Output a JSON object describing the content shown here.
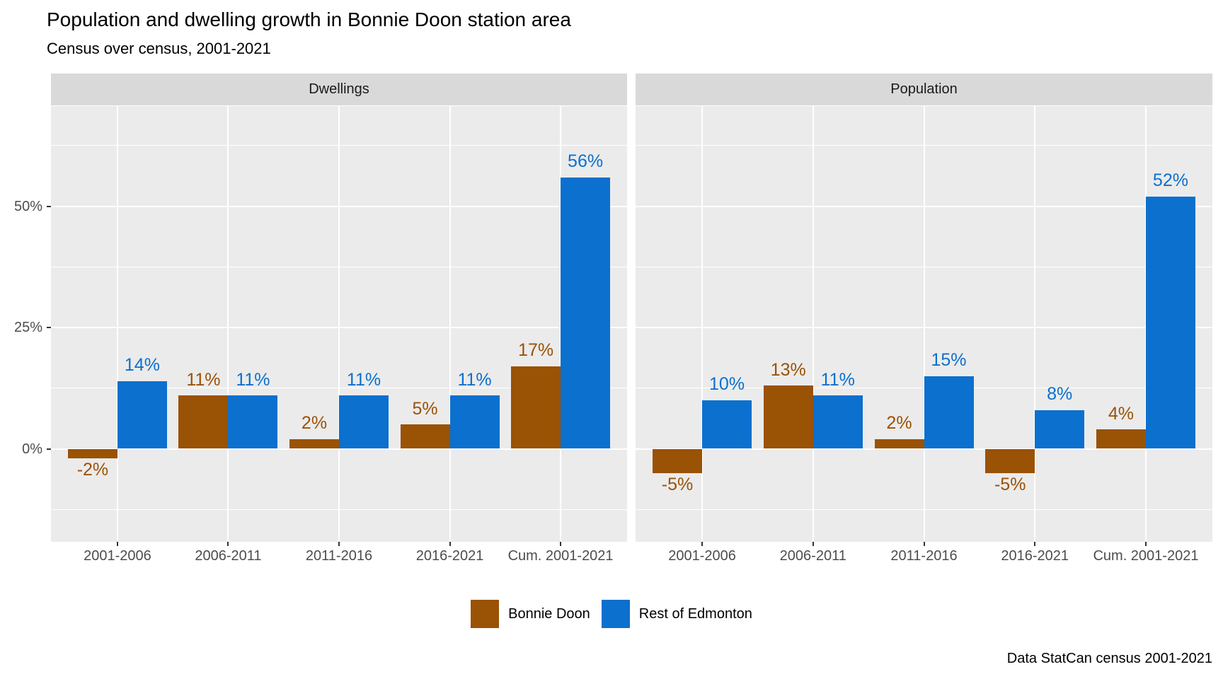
{
  "page": {
    "title": "Population and dwelling growth in Bonnie Doon station area",
    "subtitle": "Census over census, 2001-2021",
    "caption": "Data StatCan census 2001-2021"
  },
  "legend": {
    "items": [
      {
        "label": "Bonnie Doon",
        "color": "#9A5205"
      },
      {
        "label": "Rest of Edmonton",
        "color": "#0B70CE"
      }
    ]
  },
  "chart_data": {
    "type": "bar",
    "title": "Population and dwelling growth in Bonnie Doon station area",
    "subtitle": "Census over census, 2001-2021",
    "caption": "Data StatCan census 2001-2021",
    "categories": [
      "2001-2006",
      "2006-2011",
      "2011-2016",
      "2016-2021",
      "Cum. 2001-2021"
    ],
    "y_axis": {
      "unit": "%",
      "major_ticks": [
        {
          "label": "0%",
          "value": 0
        },
        {
          "label": "25%",
          "value": 25
        },
        {
          "label": "50%",
          "value": 50
        }
      ],
      "minor_ticks": [
        -12.5,
        12.5,
        37.5,
        62.5
      ],
      "range_shown": [
        -19,
        71
      ]
    },
    "legend_position": "bottom",
    "grid": true,
    "facets": [
      {
        "label": "Dwellings",
        "series": [
          {
            "name": "Bonnie Doon",
            "color": "#9A5205",
            "values": [
              -2,
              11,
              2,
              5,
              17
            ],
            "labels": [
              "-2%",
              "11%",
              "2%",
              "5%",
              "17%"
            ]
          },
          {
            "name": "Rest of Edmonton",
            "color": "#0B70CE",
            "values": [
              14,
              11,
              11,
              11,
              56
            ],
            "labels": [
              "14%",
              "11%",
              "11%",
              "11%",
              "56%"
            ]
          }
        ]
      },
      {
        "label": "Population",
        "series": [
          {
            "name": "Bonnie Doon",
            "color": "#9A5205",
            "values": [
              -5,
              13,
              2,
              -5,
              4
            ],
            "labels": [
              "-5%",
              "13%",
              "2%",
              "-5%",
              "4%"
            ]
          },
          {
            "name": "Rest of Edmonton",
            "color": "#0B70CE",
            "values": [
              10,
              11,
              15,
              8,
              52
            ],
            "labels": [
              "10%",
              "11%",
              "15%",
              "8%",
              "52%"
            ]
          }
        ]
      }
    ],
    "colors": {
      "bonnie_doon": "#9A5205",
      "rest_of_edmonton": "#0B70CE",
      "panel_background": "#EBEBEB",
      "strip_background": "#D9D9D9",
      "gridline": "#FFFFFF",
      "axis_text": "#4D4D4D",
      "tick_mark": "#333333"
    }
  }
}
